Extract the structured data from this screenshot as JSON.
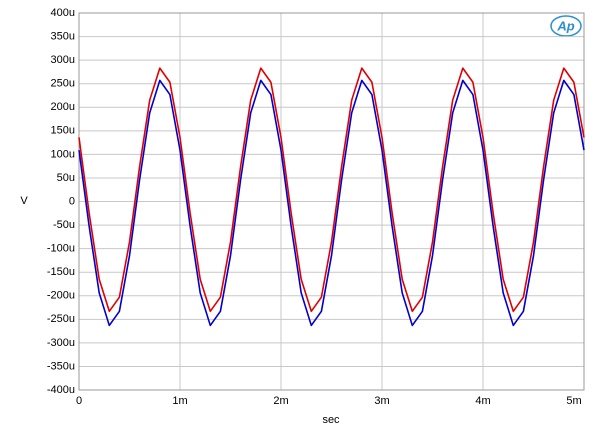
{
  "chart_data": {
    "type": "line",
    "logo": "Ap",
    "xlabel": "sec",
    "ylabel": "V",
    "x": [
      0,
      0.0001,
      0.0002,
      0.0003,
      0.0004,
      0.0005,
      0.0006,
      0.0007,
      0.0008,
      0.0009,
      0.001,
      0.0011,
      0.0012,
      0.0013,
      0.0014,
      0.0015,
      0.0016,
      0.0017,
      0.0018,
      0.0019,
      0.002,
      0.0021,
      0.0022,
      0.0023,
      0.0024,
      0.0025,
      0.0026,
      0.0027,
      0.0028,
      0.0029,
      0.003,
      0.0031,
      0.0032,
      0.0033,
      0.0034,
      0.0035,
      0.0036,
      0.0037,
      0.0038,
      0.0039,
      0.004,
      0.0041,
      0.0042,
      0.0043,
      0.0044,
      0.0045,
      0.0046,
      0.0047,
      0.0048,
      0.0049,
      0.005
    ],
    "series": [
      {
        "color": "#e00000",
        "values": [
          0.000136,
          -2.4e-05,
          -0.000165,
          -0.000233,
          -0.000203,
          -8.6e-05,
          7.4e-05,
          0.000215,
          0.000283,
          0.000253,
          0.000136,
          -2.4e-05,
          -0.000165,
          -0.000233,
          -0.000203,
          -8.6e-05,
          7.4e-05,
          0.000215,
          0.000283,
          0.000253,
          0.000136,
          -2.4e-05,
          -0.000165,
          -0.000233,
          -0.000203,
          -8.6e-05,
          7.4e-05,
          0.000215,
          0.000283,
          0.000253,
          0.000136,
          -2.4e-05,
          -0.000165,
          -0.000233,
          -0.000203,
          -8.6e-05,
          7.4e-05,
          0.000215,
          0.000283,
          0.000253,
          0.000136,
          -2.4e-05,
          -0.000165,
          -0.000233,
          -0.000203,
          -8.6e-05,
          7.4e-05,
          0.000215,
          0.000283,
          0.000253,
          0.000136
        ]
      },
      {
        "color": "#0000d0",
        "values": [
          0.000109,
          -5.2e-05,
          -0.000194,
          -0.000263,
          -0.000233,
          -0.000115,
          4.6e-05,
          0.000188,
          0.000257,
          0.000227,
          0.000109,
          -5.2e-05,
          -0.000194,
          -0.000263,
          -0.000233,
          -0.000115,
          4.6e-05,
          0.000188,
          0.000257,
          0.000227,
          0.000109,
          -5.2e-05,
          -0.000194,
          -0.000263,
          -0.000233,
          -0.000115,
          4.6e-05,
          0.000188,
          0.000257,
          0.000227,
          0.000109,
          -5.2e-05,
          -0.000194,
          -0.000263,
          -0.000233,
          -0.000115,
          4.6e-05,
          0.000188,
          0.000257,
          0.000227,
          0.000109,
          -5.2e-05,
          -0.000194,
          -0.000263,
          -0.000233,
          -0.000115,
          4.6e-05,
          0.000188,
          0.000257,
          0.000227,
          0.000109
        ]
      }
    ],
    "xlim": [
      0,
      0.005
    ],
    "xticks": [
      0,
      {
        "value": 0.001,
        "label": "1m"
      },
      {
        "value": 0.002,
        "label": "2m"
      },
      {
        "value": 0.003,
        "label": "3m"
      },
      {
        "value": 0.004,
        "label": "4m"
      },
      {
        "value": 0.005,
        "label": "5m"
      }
    ],
    "ylim": [
      -0.0004,
      0.0004
    ],
    "yticks": [
      {
        "value": -0.0004,
        "label": "-400u"
      },
      {
        "value": -0.00035,
        "label": "-350u"
      },
      {
        "value": -0.0003,
        "label": "-300u"
      },
      {
        "value": -0.00025,
        "label": "-250u"
      },
      {
        "value": -0.0002,
        "label": "-200u"
      },
      {
        "value": -0.00015,
        "label": "-150u"
      },
      {
        "value": -0.0001,
        "label": "-100u"
      },
      {
        "value": -5e-05,
        "label": "-50u"
      },
      0,
      {
        "value": 5e-05,
        "label": "50u"
      },
      {
        "value": 0.0001,
        "label": "100u"
      },
      {
        "value": 0.00015,
        "label": "150u"
      },
      {
        "value": 0.0002,
        "label": "200u"
      },
      {
        "value": 0.00025,
        "label": "250u"
      },
      {
        "value": 0.0003,
        "label": "300u"
      },
      {
        "value": 0.00035,
        "label": "350u"
      },
      {
        "value": 0.0004,
        "label": "400u"
      }
    ],
    "grid": true
  }
}
